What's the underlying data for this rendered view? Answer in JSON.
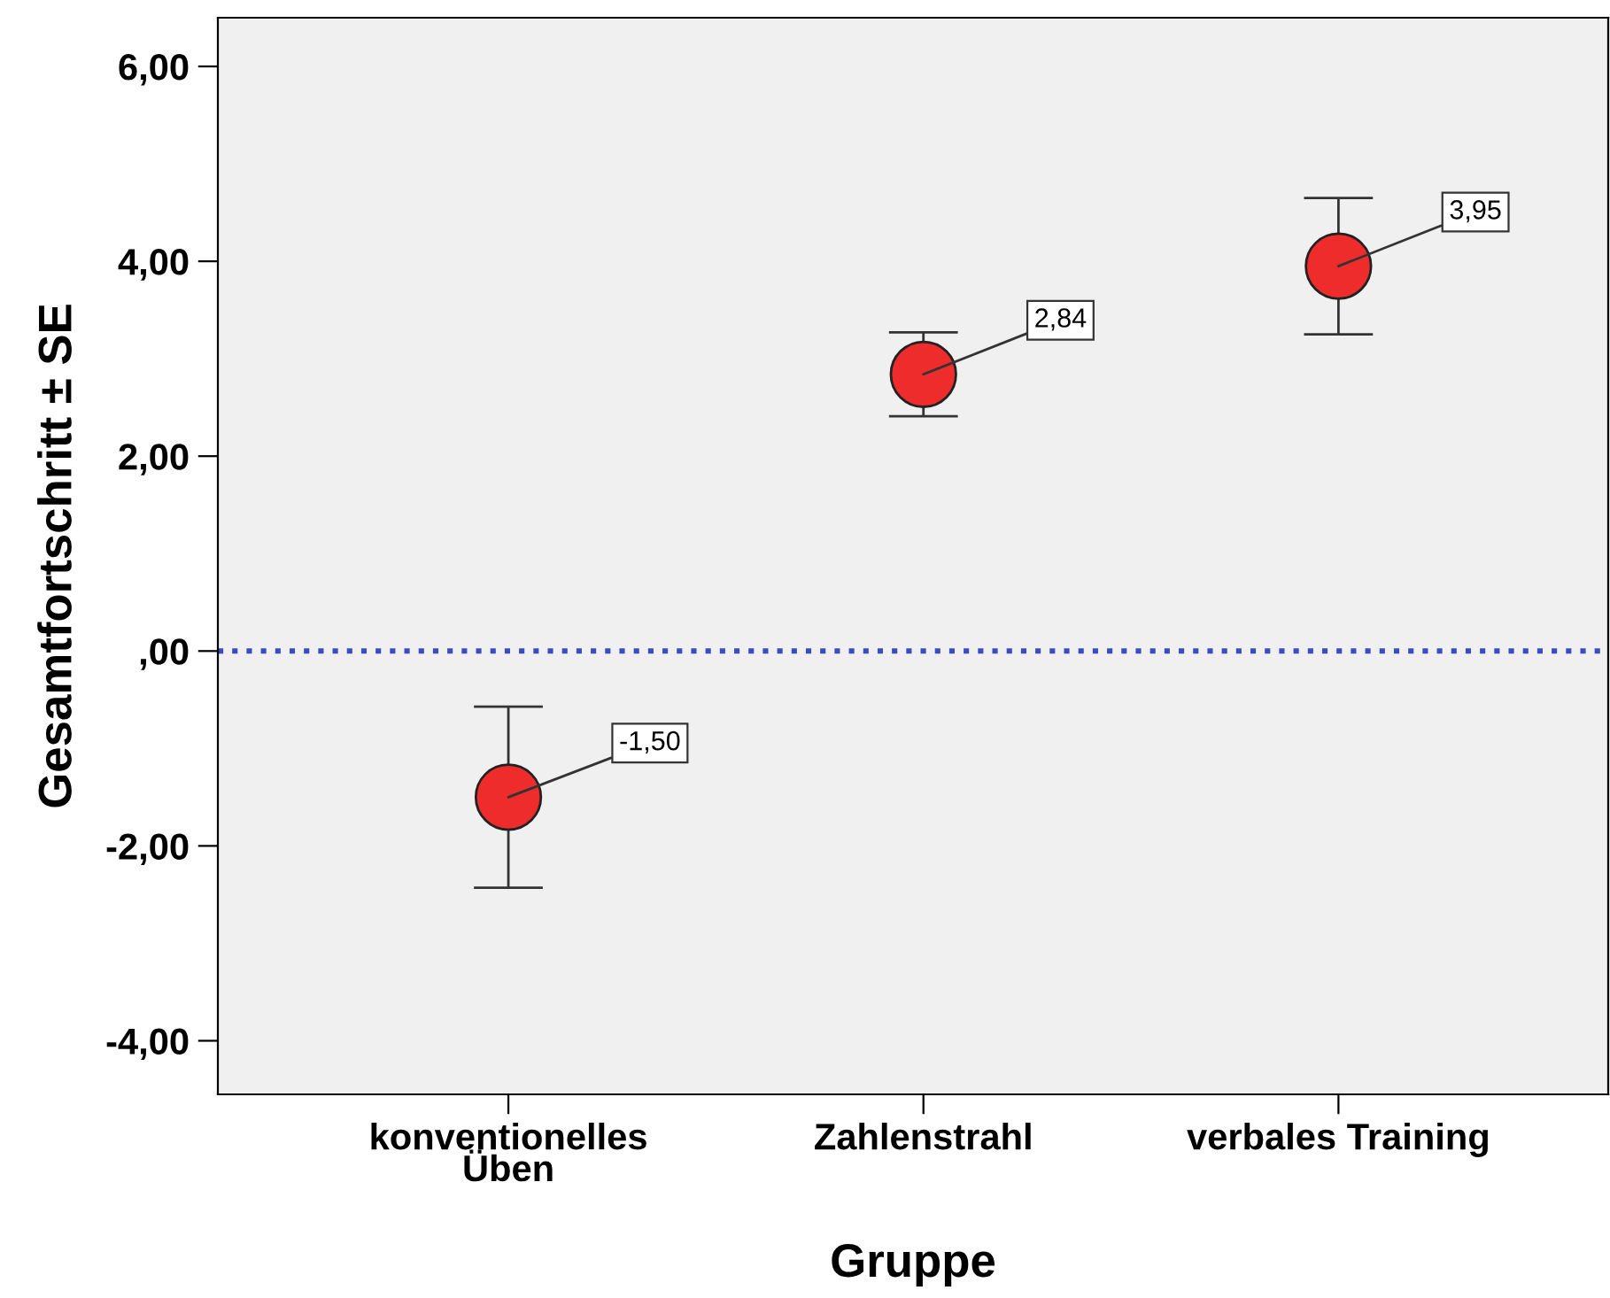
{
  "chart_data": {
    "type": "scatter",
    "xlabel": "Gruppe",
    "ylabel": "Gesamtfortschritt ± SE",
    "categories": [
      "konventionelles\nÜben",
      "Zahlenstrahl",
      "verbales Training"
    ],
    "values": [
      -1.5,
      2.84,
      3.95
    ],
    "errors": [
      0.93,
      0.43,
      0.7
    ],
    "value_labels": [
      "-1,50",
      "2,84",
      "3,95"
    ],
    "color": "#ee2c2c",
    "marker": "circle",
    "grid": false,
    "ylim": [
      -4.55,
      6.5
    ],
    "yticks": [
      {
        "value": -4,
        "label": "-4,00"
      },
      {
        "value": -2,
        "label": "-2,00"
      },
      {
        "value": 0,
        "label": ",00"
      },
      {
        "value": 2,
        "label": "2,00"
      },
      {
        "value": 4,
        "label": "4,00"
      },
      {
        "value": 6,
        "label": "6,00"
      }
    ],
    "ref_lines": [
      {
        "axis": "y",
        "value": 0,
        "label": null,
        "color": "#3b4cc0",
        "line_style": "dotted"
      }
    ]
  }
}
